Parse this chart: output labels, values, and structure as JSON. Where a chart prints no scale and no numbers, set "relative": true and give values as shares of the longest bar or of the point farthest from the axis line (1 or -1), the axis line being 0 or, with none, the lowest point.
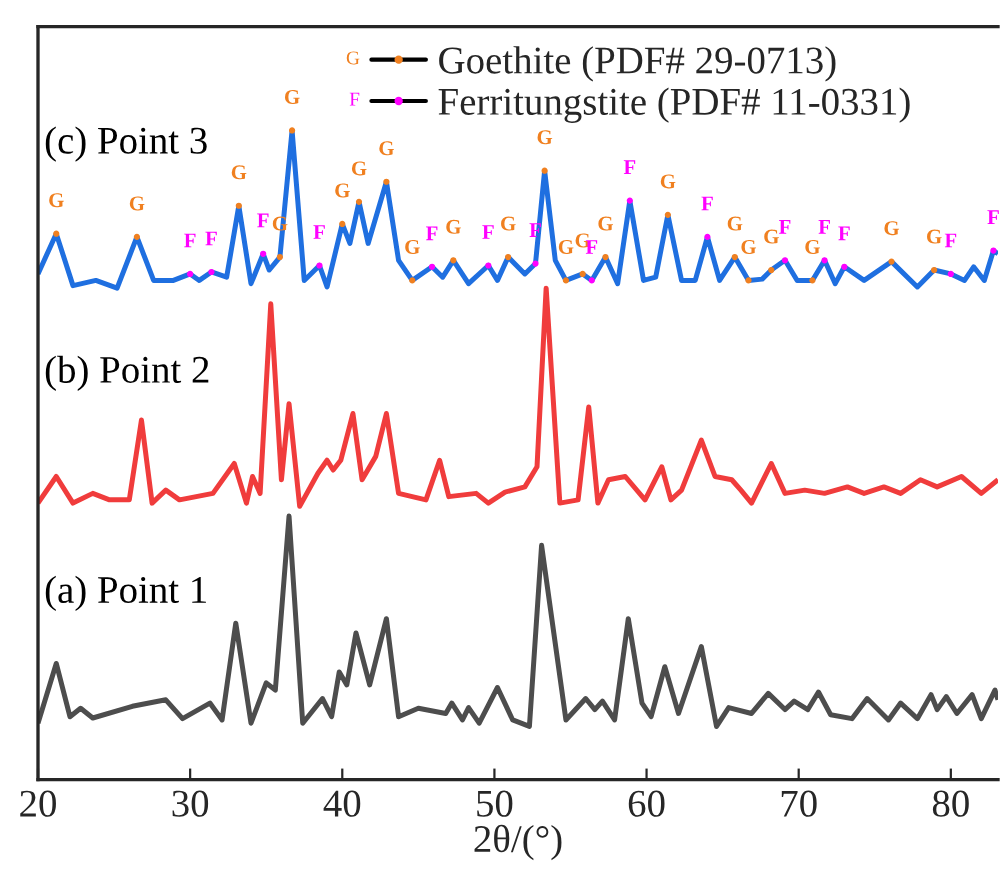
{
  "chart_data": {
    "type": "line",
    "relative": true,
    "xlabel": "2θ/(°)",
    "xlim": [
      20,
      83.1
    ],
    "xticks": [
      20,
      30,
      40,
      50,
      60,
      70,
      80
    ],
    "grid": false,
    "x": [
      20.0,
      21.2,
      22.1,
      22.8,
      23.6,
      26.2,
      28.4,
      29.5,
      31.3,
      32.1,
      33.0,
      34.0,
      35.0,
      35.6,
      36.5,
      37.4,
      38.7,
      39.3,
      39.8,
      40.3,
      40.9,
      41.8,
      42.9,
      43.7,
      45.0,
      46.8,
      47.2,
      47.9,
      48.3,
      49.0,
      50.2,
      51.2,
      52.3,
      53.1,
      54.7,
      56.0,
      56.6,
      57.1,
      57.9,
      58.8,
      59.7,
      60.3,
      61.2,
      62.1,
      63.6,
      64.6,
      65.4,
      66.9,
      68.0,
      69.1,
      69.7,
      70.6,
      71.3,
      72.1,
      73.5,
      74.5,
      75.9,
      76.7,
      77.8,
      78.7,
      79.1,
      79.7,
      80.4,
      81.4,
      82.0,
      82.9,
      83.1
    ],
    "series": [
      {
        "name": "(a) Point 1",
        "color": "#4d4d4d",
        "values": [
          0.087,
          0.179,
          0.097,
          0.11,
          0.095,
          0.113,
          0.123,
          0.094,
          0.118,
          0.092,
          0.241,
          0.087,
          0.149,
          0.138,
          0.406,
          0.087,
          0.125,
          0.097,
          0.166,
          0.146,
          0.226,
          0.146,
          0.248,
          0.097,
          0.11,
          0.102,
          0.118,
          0.092,
          0.111,
          0.087,
          0.142,
          0.092,
          0.082,
          0.361,
          0.092,
          0.125,
          0.108,
          0.121,
          0.092,
          0.248,
          0.118,
          0.097,
          0.174,
          0.102,
          0.205,
          0.082,
          0.111,
          0.102,
          0.133,
          0.108,
          0.121,
          0.108,
          0.135,
          0.1,
          0.094,
          0.125,
          0.092,
          0.118,
          0.094,
          0.131,
          0.108,
          0.128,
          0.102,
          0.131,
          0.094,
          0.138,
          0.123
        ]
      },
      {
        "name": "(b) Point 2",
        "color": "#f03c3c",
        "x": [
          20.0,
          21.2,
          22.3,
          23.6,
          24.7,
          26.0,
          26.8,
          27.5,
          28.4,
          29.3,
          31.5,
          32.9,
          33.7,
          34.1,
          34.6,
          35.3,
          36.0,
          36.5,
          37.2,
          38.4,
          39.0,
          39.4,
          39.9,
          40.7,
          41.3,
          42.2,
          42.9,
          43.7,
          45.5,
          46.4,
          47.0,
          48.8,
          49.6,
          50.7,
          52.0,
          52.8,
          53.4,
          54.3,
          55.5,
          56.2,
          56.8,
          57.5,
          58.6,
          59.9,
          61.0,
          61.6,
          62.3,
          63.6,
          64.5,
          65.6,
          66.2,
          66.9,
          68.2,
          69.1,
          70.4,
          71.7,
          73.2,
          74.3,
          75.6,
          76.7,
          78.0,
          79.1,
          80.7,
          82.0,
          83.1
        ],
        "values": [
          0.426,
          0.467,
          0.426,
          0.441,
          0.431,
          0.431,
          0.554,
          0.426,
          0.446,
          0.431,
          0.441,
          0.487,
          0.426,
          0.467,
          0.441,
          0.733,
          0.462,
          0.579,
          0.421,
          0.472,
          0.492,
          0.477,
          0.492,
          0.564,
          0.462,
          0.498,
          0.564,
          0.441,
          0.431,
          0.492,
          0.436,
          0.441,
          0.426,
          0.443,
          0.451,
          0.482,
          0.757,
          0.426,
          0.431,
          0.574,
          0.426,
          0.462,
          0.467,
          0.431,
          0.482,
          0.431,
          0.446,
          0.523,
          0.467,
          0.462,
          0.446,
          0.426,
          0.487,
          0.441,
          0.446,
          0.441,
          0.451,
          0.441,
          0.451,
          0.441,
          0.462,
          0.451,
          0.467,
          0.441,
          0.462
        ]
      },
      {
        "name": "(c) Point 3",
        "color": "#1f6fe0",
        "x": [
          20.0,
          21.2,
          22.3,
          23.8,
          25.2,
          26.5,
          27.6,
          28.9,
          30.0,
          30.6,
          31.4,
          32.4,
          33.2,
          34.0,
          34.8,
          35.2,
          35.9,
          36.7,
          37.5,
          38.5,
          39.0,
          40.0,
          40.5,
          41.1,
          41.7,
          42.9,
          43.7,
          44.6,
          45.9,
          46.6,
          47.3,
          48.3,
          49.6,
          50.2,
          50.9,
          52.0,
          52.7,
          53.3,
          54.0,
          54.7,
          55.8,
          56.4,
          57.3,
          58.1,
          58.9,
          59.8,
          60.6,
          61.4,
          62.3,
          63.2,
          64.0,
          64.8,
          65.8,
          66.7,
          67.6,
          68.2,
          69.1,
          69.9,
          70.9,
          71.7,
          72.4,
          73.0,
          74.3,
          76.1,
          77.8,
          78.9,
          80.0,
          80.9,
          81.5,
          82.2,
          82.8,
          83.1
        ],
        "values": [
          0.779,
          0.841,
          0.761,
          0.769,
          0.757,
          0.836,
          0.769,
          0.769,
          0.779,
          0.769,
          0.782,
          0.774,
          0.884,
          0.764,
          0.81,
          0.785,
          0.805,
          1.0,
          0.769,
          0.792,
          0.759,
          0.856,
          0.826,
          0.89,
          0.826,
          0.921,
          0.8,
          0.769,
          0.79,
          0.774,
          0.8,
          0.764,
          0.792,
          0.769,
          0.805,
          0.779,
          0.795,
          0.938,
          0.8,
          0.769,
          0.779,
          0.769,
          0.805,
          0.764,
          0.892,
          0.769,
          0.774,
          0.87,
          0.769,
          0.769,
          0.836,
          0.769,
          0.805,
          0.769,
          0.771,
          0.785,
          0.8,
          0.769,
          0.769,
          0.8,
          0.764,
          0.79,
          0.769,
          0.798,
          0.759,
          0.785,
          0.779,
          0.769,
          0.79,
          0.769,
          0.815,
          0.81
        ]
      },
      {
        "name": "Goethite (PDF# 29-0713)",
        "type": "scatter",
        "color": "#f08020",
        "x": [
          21.2,
          26.5,
          33.2,
          35.9,
          36.7,
          40.0,
          41.1,
          42.9,
          44.6,
          47.3,
          50.9,
          53.3,
          54.7,
          55.8,
          57.3,
          61.4,
          65.8,
          66.7,
          68.2,
          70.9,
          76.1,
          78.9
        ],
        "values": [
          0.841,
          0.836,
          0.884,
          0.805,
          1.0,
          0.856,
          0.89,
          0.921,
          0.769,
          0.8,
          0.805,
          0.938,
          0.769,
          0.779,
          0.805,
          0.87,
          0.805,
          0.769,
          0.785,
          0.769,
          0.798,
          0.785
        ]
      },
      {
        "name": "Ferritungstite (PDF# 11-0331)",
        "type": "scatter",
        "color": "#ff00ff",
        "x": [
          30.0,
          31.4,
          34.8,
          38.5,
          45.9,
          49.6,
          52.7,
          56.4,
          58.9,
          64.0,
          69.1,
          71.7,
          73.0,
          80.0,
          82.8
        ],
        "values": [
          0.779,
          0.782,
          0.81,
          0.792,
          0.79,
          0.792,
          0.795,
          0.769,
          0.892,
          0.836,
          0.8,
          0.8,
          0.79,
          0.779,
          0.815
        ]
      }
    ],
    "legend": "top right",
    "annotations": [
      "G",
      "F",
      {
        "text": "G",
        "x": 21.2,
        "y": 0.841
      },
      {
        "text": "G",
        "x": 26.5,
        "y": 0.836
      },
      {
        "text": "F",
        "x": 30.0,
        "y": 0.779
      },
      {
        "text": "F",
        "x": 31.4,
        "y": 0.782
      },
      {
        "text": "G",
        "x": 33.2,
        "y": 0.884
      },
      {
        "text": "F",
        "x": 34.8,
        "y": 0.81
      },
      {
        "text": "G",
        "x": 35.9,
        "y": 0.805
      },
      {
        "text": "G",
        "x": 36.7,
        "y": 1.0
      },
      {
        "text": "F",
        "x": 38.5,
        "y": 0.792
      },
      {
        "text": "G",
        "x": 40.0,
        "y": 0.856
      },
      {
        "text": "G",
        "x": 41.1,
        "y": 0.89
      },
      {
        "text": "G",
        "x": 42.9,
        "y": 0.921
      },
      {
        "text": "G",
        "x": 44.6,
        "y": 0.769
      },
      {
        "text": "F",
        "x": 45.9,
        "y": 0.79
      },
      {
        "text": "G",
        "x": 47.3,
        "y": 0.8
      },
      {
        "text": "F",
        "x": 49.6,
        "y": 0.792
      },
      {
        "text": "G",
        "x": 50.9,
        "y": 0.805
      },
      {
        "text": "F",
        "x": 52.7,
        "y": 0.795
      },
      {
        "text": "G",
        "x": 53.3,
        "y": 0.938
      },
      {
        "text": "G",
        "x": 54.7,
        "y": 0.769
      },
      {
        "text": "G",
        "x": 55.8,
        "y": 0.779
      },
      {
        "text": "F",
        "x": 56.4,
        "y": 0.769
      },
      {
        "text": "G",
        "x": 57.3,
        "y": 0.805
      },
      {
        "text": "F",
        "x": 58.9,
        "y": 0.892
      },
      {
        "text": "G",
        "x": 61.4,
        "y": 0.87
      },
      {
        "text": "F",
        "x": 64.0,
        "y": 0.836
      },
      {
        "text": "G",
        "x": 65.8,
        "y": 0.805
      },
      {
        "text": "G",
        "x": 66.7,
        "y": 0.769
      },
      {
        "text": "G",
        "x": 68.2,
        "y": 0.785
      },
      {
        "text": "F",
        "x": 69.1,
        "y": 0.8
      },
      {
        "text": "G",
        "x": 70.9,
        "y": 0.769
      },
      {
        "text": "F",
        "x": 71.7,
        "y": 0.8
      },
      {
        "text": "F",
        "x": 73.0,
        "y": 0.79
      },
      {
        "text": "G",
        "x": 76.1,
        "y": 0.798
      },
      {
        "text": "G",
        "x": 78.9,
        "y": 0.785
      },
      {
        "text": "F",
        "x": 80.0,
        "y": 0.779
      },
      {
        "text": "F",
        "x": 82.8,
        "y": 0.815
      }
    ]
  }
}
